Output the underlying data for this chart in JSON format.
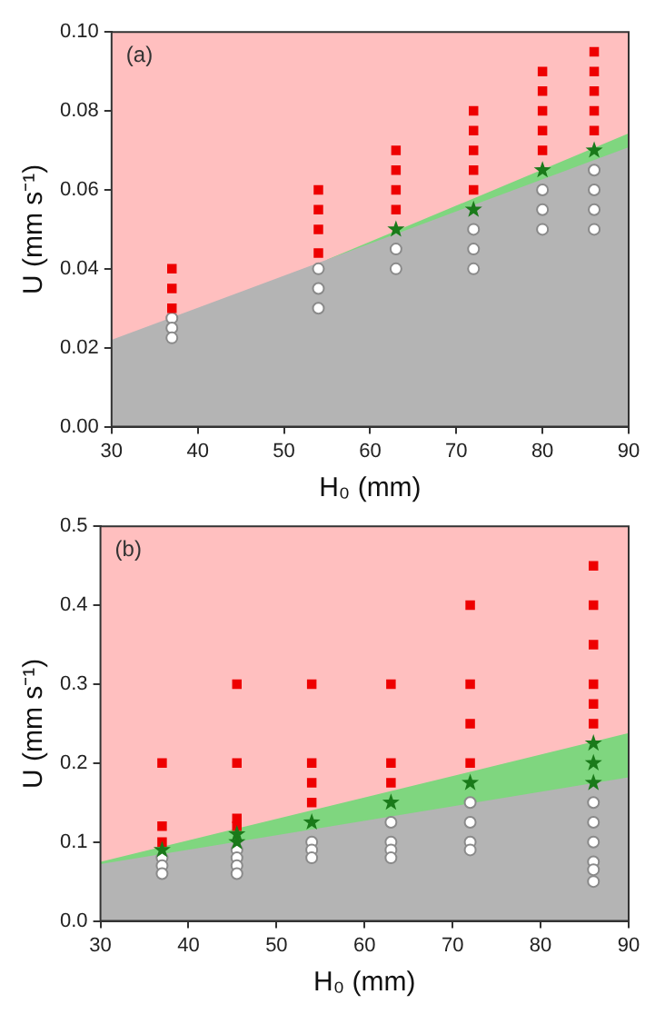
{
  "chart_data": [
    {
      "type": "scatter",
      "xlabel": "H₀ (mm)",
      "ylabel": "U (mm s⁻¹)",
      "annotations": [
        "(a)"
      ],
      "xlim": [
        30,
        90
      ],
      "xticks": [
        30,
        40,
        50,
        60,
        70,
        80,
        90
      ],
      "ylim": [
        0,
        0.1
      ],
      "yticks": [
        {
          "value": 0,
          "label": "0.00"
        },
        {
          "value": 0.02,
          "label": "0.02"
        },
        {
          "value": 0.04,
          "label": "0.04"
        },
        {
          "value": 0.06,
          "label": "0.06"
        },
        {
          "value": 0.08,
          "label": "0.08"
        },
        {
          "value": 0.1,
          "label": "0.10"
        }
      ],
      "legend": false,
      "bands": [
        {
          "axis": "y",
          "from": 0,
          "to": 0.1,
          "color": "#ffbfbf"
        }
      ],
      "series": [
        {
          "type": "area",
          "color": "#b4b4b4",
          "x": [
            30,
            90
          ],
          "values": [
            0.022,
            0.0708
          ]
        },
        {
          "type": "area",
          "color": "#7fd67f",
          "x": [
            55,
            90
          ],
          "values": [
            0.0423,
            0.0743
          ]
        },
        {
          "type": "scatter",
          "marker": "square",
          "color": "#ee0000",
          "x": [
            37,
            37,
            37,
            54,
            54,
            54,
            54,
            63,
            63,
            63,
            63,
            72,
            72,
            72,
            72,
            72,
            80,
            80,
            80,
            80,
            80,
            86,
            86,
            86,
            86,
            86
          ],
          "values": [
            0.04,
            0.035,
            0.03,
            0.06,
            0.055,
            0.05,
            0.044,
            0.07,
            0.065,
            0.06,
            0.055,
            0.08,
            0.075,
            0.07,
            0.065,
            0.06,
            0.09,
            0.085,
            0.08,
            0.075,
            0.07,
            0.095,
            0.09,
            0.085,
            0.08,
            0.075
          ]
        },
        {
          "type": "scatter",
          "marker": "star",
          "color": "#1a7a1a",
          "x": [
            63,
            72,
            80,
            86
          ],
          "values": [
            0.05,
            0.055,
            0.065,
            0.07
          ]
        },
        {
          "type": "scatter",
          "marker": "circle",
          "color": "#ffffff",
          "x": [
            37,
            37,
            37,
            54,
            54,
            54,
            63,
            63,
            72,
            72,
            72,
            80,
            80,
            80,
            86,
            86,
            86,
            86
          ],
          "values": [
            0.0275,
            0.025,
            0.0225,
            0.04,
            0.035,
            0.03,
            0.045,
            0.04,
            0.05,
            0.045,
            0.04,
            0.06,
            0.055,
            0.05,
            0.065,
            0.06,
            0.055,
            0.05
          ]
        }
      ]
    },
    {
      "type": "scatter",
      "xlabel": "H₀ (mm)",
      "ylabel": "U (mm s⁻¹)",
      "annotations": [
        "(b)"
      ],
      "xlim": [
        30,
        90
      ],
      "xticks": [
        30,
        40,
        50,
        60,
        70,
        80,
        90
      ],
      "ylim": [
        0,
        0.5
      ],
      "yticks": [
        {
          "value": 0,
          "label": "0.0"
        },
        {
          "value": 0.1,
          "label": "0.1"
        },
        {
          "value": 0.2,
          "label": "0.2"
        },
        {
          "value": 0.3,
          "label": "0.3"
        },
        {
          "value": 0.4,
          "label": "0.4"
        },
        {
          "value": 0.5,
          "label": "0.5"
        }
      ],
      "legend": false,
      "bands": [
        {
          "axis": "y",
          "from": 0,
          "to": 0.5,
          "color": "#ffbfbf"
        }
      ],
      "series": [
        {
          "type": "area",
          "color": "#b4b4b4",
          "x": [
            30,
            90
          ],
          "values": [
            0.072,
            0.182
          ]
        },
        {
          "type": "area",
          "color": "#7fd67f",
          "x": [
            30,
            90
          ],
          "values": [
            0.075,
            0.238
          ]
        },
        {
          "type": "scatter",
          "marker": "square",
          "color": "#ee0000",
          "x": [
            37,
            37,
            37,
            45.5,
            45.5,
            45.5,
            45.5,
            54,
            54,
            54,
            54,
            63,
            63,
            63,
            72,
            72,
            72,
            72,
            86,
            86,
            86,
            86,
            86,
            86
          ],
          "values": [
            0.2,
            0.12,
            0.1,
            0.3,
            0.2,
            0.13,
            0.12,
            0.3,
            0.2,
            0.175,
            0.15,
            0.3,
            0.2,
            0.175,
            0.4,
            0.3,
            0.25,
            0.2,
            0.45,
            0.4,
            0.35,
            0.3,
            0.275,
            0.25
          ]
        },
        {
          "type": "scatter",
          "marker": "star",
          "color": "#1a7a1a",
          "x": [
            37,
            45.5,
            45.5,
            54,
            63,
            72,
            86,
            86,
            86
          ],
          "values": [
            0.09,
            0.11,
            0.1,
            0.125,
            0.15,
            0.175,
            0.225,
            0.2,
            0.175
          ]
        },
        {
          "type": "scatter",
          "marker": "circle",
          "color": "#ffffff",
          "x": [
            37,
            37,
            37,
            45.5,
            45.5,
            45.5,
            45.5,
            54,
            54,
            54,
            63,
            63,
            63,
            63,
            72,
            72,
            72,
            72,
            86,
            86,
            86,
            86,
            86,
            86
          ],
          "values": [
            0.08,
            0.07,
            0.06,
            0.09,
            0.08,
            0.07,
            0.06,
            0.1,
            0.09,
            0.08,
            0.125,
            0.1,
            0.09,
            0.08,
            0.15,
            0.125,
            0.1,
            0.09,
            0.15,
            0.125,
            0.1,
            0.075,
            0.065,
            0.05
          ]
        }
      ]
    }
  ]
}
